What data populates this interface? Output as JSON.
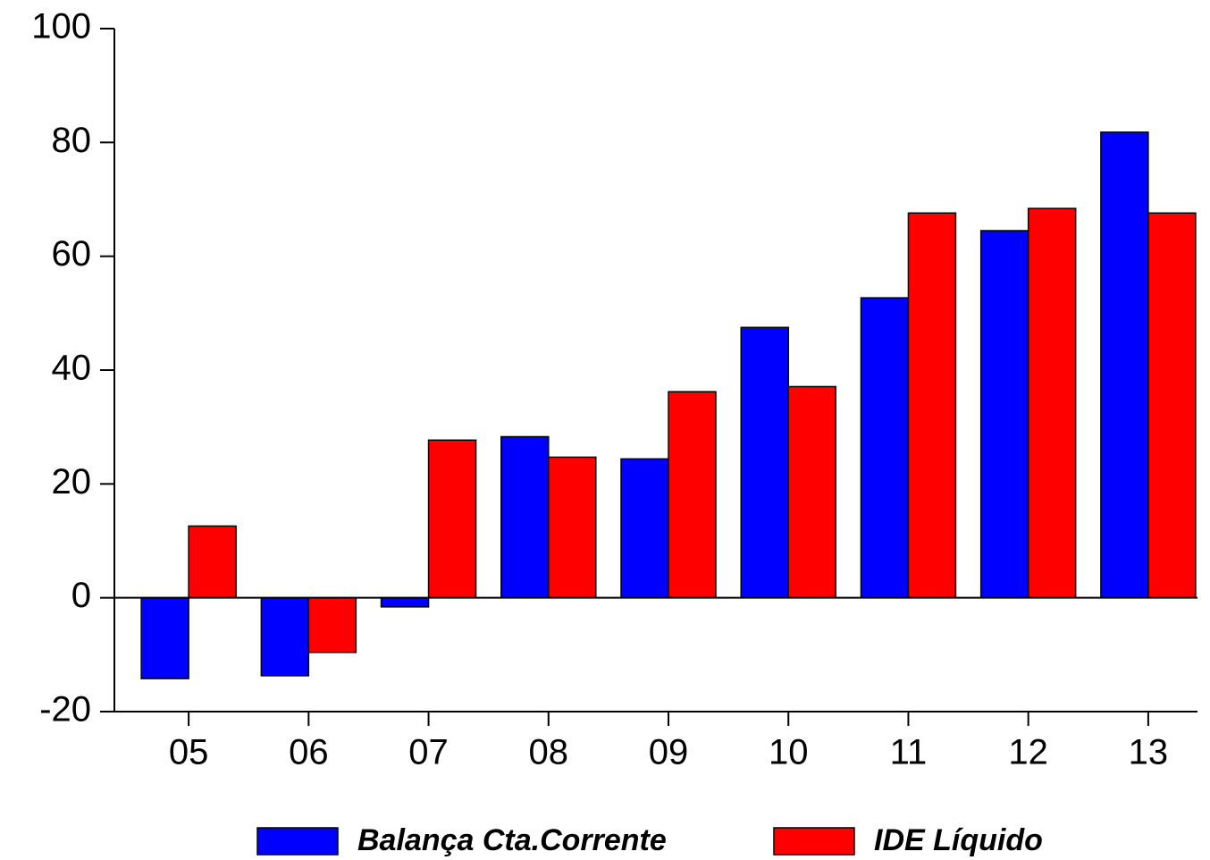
{
  "chart_data": {
    "type": "bar",
    "categories": [
      "05",
      "06",
      "07",
      "08",
      "09",
      "10",
      "11",
      "12",
      "13"
    ],
    "series": [
      {
        "name": "Balança Cta.Corrente",
        "color": "#0000ff",
        "values": [
          -14.2,
          -13.7,
          -1.6,
          28.3,
          24.4,
          47.5,
          52.7,
          64.5,
          81.8
        ]
      },
      {
        "name": "IDE Líquido",
        "color": "#ff0000",
        "values": [
          12.6,
          -9.6,
          27.7,
          24.7,
          36.2,
          37.1,
          67.6,
          68.4,
          67.6
        ]
      }
    ],
    "ylim": [
      -20,
      100
    ],
    "yticks": [
      -20,
      0,
      20,
      40,
      60,
      80,
      100
    ],
    "grid": false,
    "legend": "bottom"
  }
}
